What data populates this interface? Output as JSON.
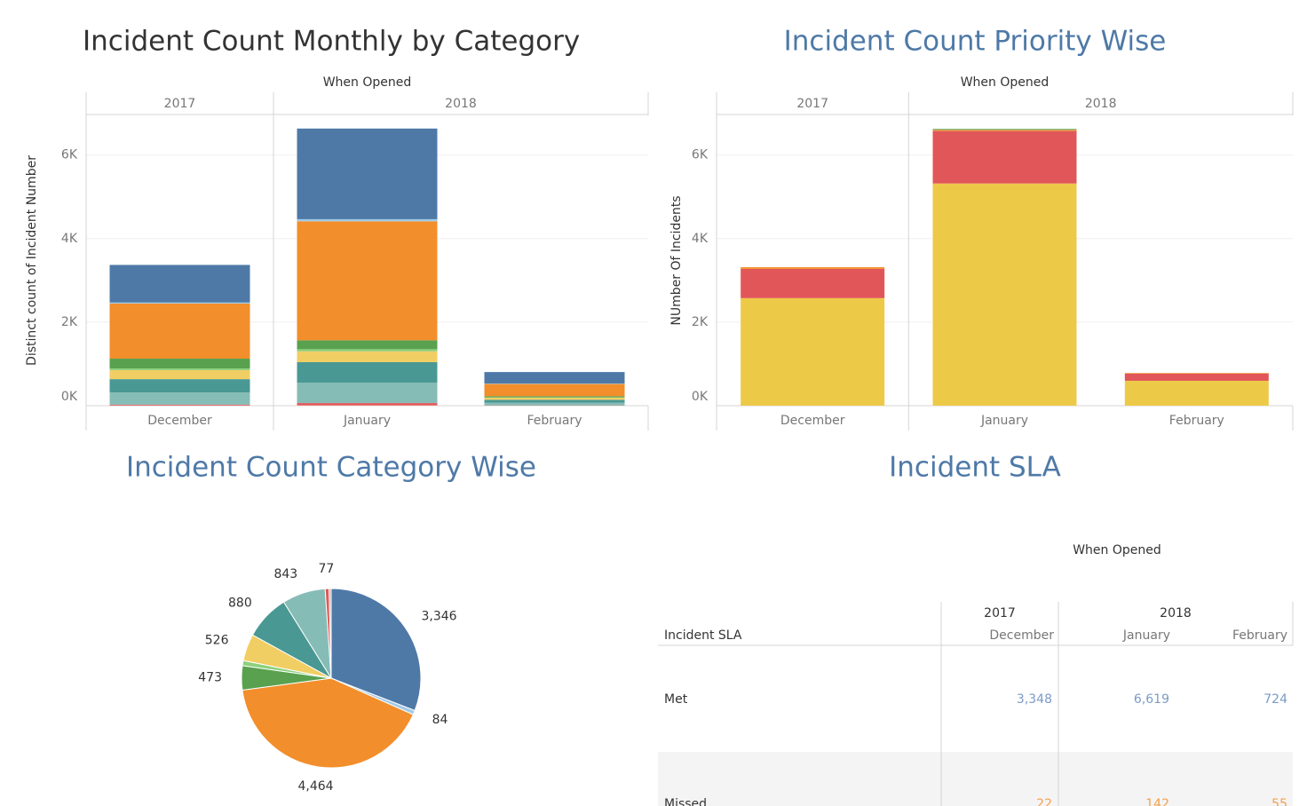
{
  "chart_data": [
    {
      "type": "stacked_bar",
      "title": "Incident Count Monthly by Category",
      "xlabel": "When Opened",
      "ylabel": "Distinct count of Incident Number",
      "year_groups": [
        {
          "label": "2017",
          "count": 1
        },
        {
          "label": "2018",
          "count": 2
        }
      ],
      "categories": [
        "December",
        "January",
        "February"
      ],
      "series": [
        {
          "color": "#ff9d9a",
          "values": [
            5,
            10,
            2
          ]
        },
        {
          "color": "#e15759",
          "values": [
            20,
            52,
            5
          ]
        },
        {
          "color": "#86bcb6",
          "values": [
            290,
            490,
            63
          ]
        },
        {
          "color": "#499894",
          "values": [
            320,
            490,
            70
          ]
        },
        {
          "color": "#f1ce63",
          "values": [
            216,
            260,
            50
          ]
        },
        {
          "color": "#8cd17d",
          "values": [
            40,
            50,
            10
          ]
        },
        {
          "color": "#59a14f",
          "values": [
            235,
            213,
            25
          ]
        },
        {
          "color": "#f28e2b",
          "values": [
            1320,
            2850,
            294
          ]
        },
        {
          "color": "#a0cbe8",
          "values": [
            24,
            50,
            10
          ]
        },
        {
          "color": "#4e79a7",
          "values": [
            900,
            2170,
            276
          ]
        }
      ],
      "ylim": [
        0,
        6950
      ],
      "yticks": [
        {
          "value": 0,
          "label": "0K"
        },
        {
          "value": 2000,
          "label": "2K"
        },
        {
          "value": 4000,
          "label": "4K"
        },
        {
          "value": 6000,
          "label": "6K"
        }
      ],
      "grid": true
    },
    {
      "type": "stacked_bar",
      "title": "Incident Count Priority Wise",
      "xlabel": "When Opened",
      "ylabel": "NUmber Of Incidents",
      "year_groups": [
        {
          "label": "2017",
          "count": 1
        },
        {
          "label": "2018",
          "count": 2
        }
      ],
      "categories": [
        "December",
        "January",
        "February"
      ],
      "series": [
        {
          "color": "#edc948",
          "values": [
            2575,
            5320,
            596
          ]
        },
        {
          "color": "#e15759",
          "values": [
            700,
            1255,
            170
          ]
        },
        {
          "color": "#f28e2b",
          "values": [
            40,
            30,
            15
          ]
        },
        {
          "color": "#59a14f",
          "values": [
            0,
            20,
            0
          ]
        }
      ],
      "ylim": [
        0,
        6950
      ],
      "yticks": [
        {
          "value": 0,
          "label": "0K"
        },
        {
          "value": 2000,
          "label": "2K"
        },
        {
          "value": 4000,
          "label": "4K"
        },
        {
          "value": 6000,
          "label": "6K"
        }
      ],
      "grid": true
    },
    {
      "type": "pie",
      "title": "Incident Count Category Wise",
      "values": [
        3346,
        84,
        4464,
        473,
        100,
        526,
        880,
        843,
        77,
        40
      ],
      "value_labels": [
        "3,346",
        "84",
        "4,464",
        "473",
        null,
        "526",
        "880",
        "843",
        "77",
        null
      ],
      "colors": [
        "#4e79a7",
        "#a0cbe8",
        "#f28e2b",
        "#59a14f",
        "#8cd17d",
        "#f1ce63",
        "#499894",
        "#86bcb6",
        "#e15759",
        "#bab0ac"
      ]
    }
  ],
  "sla_table": {
    "title": "Incident SLA",
    "axis_label": "When Opened",
    "row_header": "Incident SLA",
    "year_groups": [
      {
        "label": "2017",
        "count": 1
      },
      {
        "label": "2018",
        "count": 2
      }
    ],
    "months": [
      "December",
      "January",
      "February"
    ],
    "rows": [
      {
        "label": "Met",
        "color": "#7b9bc6",
        "cells": [
          "3,348",
          "6,619",
          "724"
        ]
      },
      {
        "label": "Missed",
        "color": "#f5a04b",
        "cells": [
          "22",
          "142",
          "55"
        ]
      }
    ]
  }
}
